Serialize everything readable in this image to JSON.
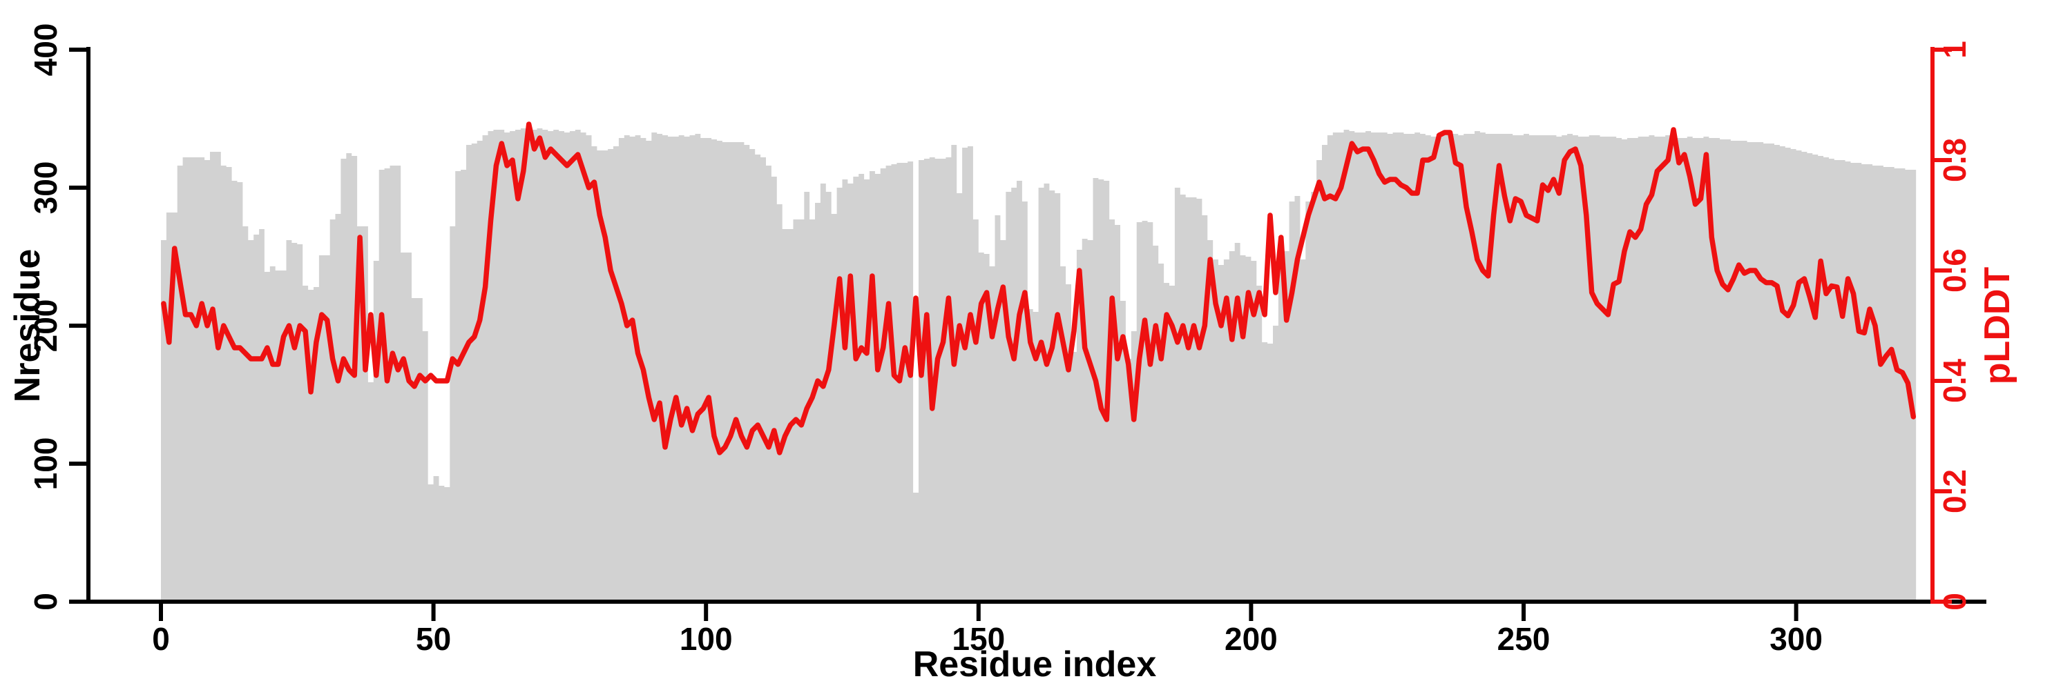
{
  "figure": {
    "background": "#ffffff",
    "description": "Dual-axis plot: gray bars of Nresidue per residue index with red pLDDT line overlay"
  },
  "chart_data": {
    "type": "bar",
    "subtype": "bar-plus-line-dual-axis",
    "title": "",
    "xlabel": "Residue index",
    "ylabel_left": "Nresidue",
    "ylabel_right": "pLDDT",
    "x_ticks": [
      0,
      50,
      100,
      150,
      200,
      250,
      300
    ],
    "x_tick_labels": [
      "0",
      "50",
      "100",
      "150",
      "200",
      "250",
      "300"
    ],
    "y_left_ticks": [
      0,
      100,
      200,
      300,
      400
    ],
    "y_left_tick_labels": [
      "0",
      "100",
      "200",
      "300",
      "400"
    ],
    "y_right_ticks": [
      0,
      0.2,
      0.4,
      0.6,
      0.8,
      1
    ],
    "y_right_tick_labels": [
      "0",
      "0.2",
      "0.4",
      "0.6",
      "0.8",
      "1"
    ],
    "ylim_left": [
      0,
      400
    ],
    "ylim_right": [
      0,
      1
    ],
    "xlim": [
      0,
      322
    ],
    "n_residues": 322,
    "grid": false,
    "legend_position": "none",
    "colors": {
      "bar_fill": "#d2d2d2",
      "line": "#ee1111",
      "axis_left": "#000000",
      "axis_bottom": "#000000",
      "axis_right": "#ee1111",
      "text": "#000000",
      "background": "#ffffff"
    },
    "series": [
      {
        "name": "Nresidue",
        "type": "bar",
        "axis": "left",
        "values": [
          262,
          282,
          282,
          316,
          322,
          322,
          322,
          322,
          320,
          326,
          326,
          316,
          315,
          305,
          304,
          272,
          262,
          266,
          270,
          239,
          243,
          240,
          240,
          262,
          260,
          259,
          229,
          226,
          228,
          251,
          251,
          277,
          281,
          321,
          325,
          323,
          272,
          272,
          159,
          247,
          313,
          314,
          316,
          316,
          253,
          253,
          220,
          220,
          196,
          85,
          91,
          84,
          83,
          272,
          312,
          313,
          331,
          332,
          334,
          338,
          341,
          342,
          342,
          340,
          341,
          342,
          343,
          343,
          342,
          343,
          342,
          341,
          342,
          341,
          340,
          341,
          342,
          340,
          338,
          330,
          327,
          327,
          328,
          330,
          336,
          338,
          337,
          338,
          336,
          334,
          340,
          339,
          338,
          337,
          337,
          338,
          337,
          338,
          339,
          336,
          336,
          335,
          334,
          333,
          333,
          333,
          333,
          331,
          328,
          324,
          322,
          316,
          308,
          288,
          270,
          270,
          277,
          277,
          297,
          277,
          289,
          303,
          297,
          281,
          300,
          306,
          303,
          308,
          310,
          306,
          312,
          310,
          314,
          316,
          317,
          318,
          318,
          319,
          79,
          320,
          321,
          322,
          321,
          321,
          322,
          331,
          296,
          329,
          330,
          277,
          253,
          252,
          243,
          280,
          262,
          297,
          300,
          305,
          290,
          212,
          210,
          300,
          303,
          298,
          296,
          243,
          230,
          181,
          255,
          263,
          262,
          307,
          306,
          305,
          277,
          273,
          218,
          176,
          196,
          275,
          276,
          275,
          258,
          245,
          231,
          229,
          300,
          295,
          293,
          293,
          292,
          280,
          262,
          248,
          244,
          248,
          254,
          260,
          251,
          250,
          247,
          229,
          188,
          187,
          200,
          252,
          254,
          290,
          294,
          248,
          290,
          297,
          320,
          331,
          338,
          340,
          340,
          342,
          341,
          340,
          340,
          341,
          340,
          340,
          340,
          339,
          340,
          340,
          339,
          339,
          340,
          339,
          338,
          337,
          339,
          340,
          339,
          339,
          338,
          339,
          339,
          341,
          340,
          339,
          339,
          339,
          339,
          339,
          338,
          338,
          339,
          338,
          338,
          338,
          338,
          338,
          337,
          338,
          339,
          338,
          337,
          337,
          338,
          338,
          337,
          337,
          337,
          336,
          335,
          336,
          336,
          337,
          337,
          338,
          337,
          337,
          338,
          337,
          336,
          336,
          337,
          336,
          336,
          337,
          336,
          336,
          335,
          335,
          334,
          334,
          334,
          333,
          333,
          333,
          332,
          332,
          331,
          330,
          329,
          328,
          327,
          326,
          325,
          324,
          323,
          322,
          321,
          320,
          320,
          319,
          318,
          318,
          317,
          317,
          316,
          316,
          315,
          315,
          314,
          314,
          313,
          313
        ]
      },
      {
        "name": "pLDDT",
        "type": "line",
        "axis": "right",
        "values": [
          0.54,
          0.47,
          0.64,
          0.58,
          0.52,
          0.52,
          0.5,
          0.54,
          0.5,
          0.53,
          0.46,
          0.5,
          0.48,
          0.46,
          0.46,
          0.45,
          0.44,
          0.44,
          0.44,
          0.46,
          0.43,
          0.43,
          0.48,
          0.5,
          0.46,
          0.5,
          0.49,
          0.38,
          0.47,
          0.52,
          0.51,
          0.44,
          0.4,
          0.44,
          0.42,
          0.41,
          0.66,
          0.42,
          0.52,
          0.41,
          0.52,
          0.4,
          0.45,
          0.42,
          0.44,
          0.4,
          0.39,
          0.41,
          0.4,
          0.41,
          0.4,
          0.4,
          0.4,
          0.44,
          0.43,
          0.45,
          0.47,
          0.48,
          0.51,
          0.57,
          0.69,
          0.79,
          0.83,
          0.79,
          0.8,
          0.73,
          0.78,
          0.865,
          0.82,
          0.84,
          0.805,
          0.82,
          0.81,
          0.8,
          0.79,
          0.8,
          0.81,
          0.78,
          0.75,
          0.76,
          0.7,
          0.66,
          0.6,
          0.57,
          0.54,
          0.5,
          0.51,
          0.45,
          0.42,
          0.37,
          0.33,
          0.36,
          0.28,
          0.33,
          0.37,
          0.32,
          0.35,
          0.31,
          0.34,
          0.35,
          0.37,
          0.3,
          0.27,
          0.28,
          0.3,
          0.33,
          0.3,
          0.28,
          0.31,
          0.32,
          0.3,
          0.28,
          0.31,
          0.27,
          0.3,
          0.32,
          0.33,
          0.32,
          0.35,
          0.37,
          0.4,
          0.39,
          0.42,
          0.5,
          0.585,
          0.46,
          0.59,
          0.44,
          0.46,
          0.45,
          0.59,
          0.42,
          0.46,
          0.54,
          0.41,
          0.4,
          0.46,
          0.41,
          0.55,
          0.41,
          0.52,
          0.35,
          0.44,
          0.47,
          0.55,
          0.43,
          0.5,
          0.46,
          0.52,
          0.47,
          0.54,
          0.56,
          0.48,
          0.53,
          0.57,
          0.48,
          0.44,
          0.52,
          0.56,
          0.47,
          0.44,
          0.47,
          0.43,
          0.46,
          0.52,
          0.47,
          0.42,
          0.49,
          0.6,
          0.46,
          0.43,
          0.4,
          0.35,
          0.33,
          0.55,
          0.44,
          0.48,
          0.43,
          0.33,
          0.44,
          0.51,
          0.43,
          0.5,
          0.44,
          0.52,
          0.5,
          0.47,
          0.5,
          0.46,
          0.5,
          0.46,
          0.5,
          0.62,
          0.54,
          0.5,
          0.55,
          0.475,
          0.55,
          0.48,
          0.56,
          0.52,
          0.56,
          0.52,
          0.7,
          0.56,
          0.66,
          0.51,
          0.56,
          0.62,
          0.66,
          0.7,
          0.73,
          0.76,
          0.73,
          0.735,
          0.73,
          0.75,
          0.79,
          0.83,
          0.815,
          0.82,
          0.82,
          0.8,
          0.775,
          0.76,
          0.765,
          0.765,
          0.755,
          0.75,
          0.74,
          0.74,
          0.8,
          0.8,
          0.805,
          0.845,
          0.85,
          0.85,
          0.795,
          0.79,
          0.715,
          0.67,
          0.62,
          0.6,
          0.59,
          0.7,
          0.79,
          0.735,
          0.69,
          0.73,
          0.725,
          0.7,
          0.695,
          0.69,
          0.755,
          0.745,
          0.765,
          0.74,
          0.8,
          0.815,
          0.82,
          0.79,
          0.7,
          0.56,
          0.54,
          0.53,
          0.52,
          0.575,
          0.58,
          0.635,
          0.67,
          0.66,
          0.675,
          0.72,
          0.737,
          0.78,
          0.79,
          0.8,
          0.855,
          0.795,
          0.81,
          0.77,
          0.72,
          0.73,
          0.81,
          0.66,
          0.6,
          0.575,
          0.565,
          0.585,
          0.61,
          0.595,
          0.6,
          0.6,
          0.585,
          0.578,
          0.578,
          0.572,
          0.527,
          0.518,
          0.537,
          0.578,
          0.585,
          0.552,
          0.515,
          0.617,
          0.558,
          0.572,
          0.57,
          0.517,
          0.585,
          0.558,
          0.49,
          0.487,
          0.53,
          0.5,
          0.43,
          0.445,
          0.457,
          0.42,
          0.415,
          0.396,
          0.335
        ]
      }
    ]
  }
}
